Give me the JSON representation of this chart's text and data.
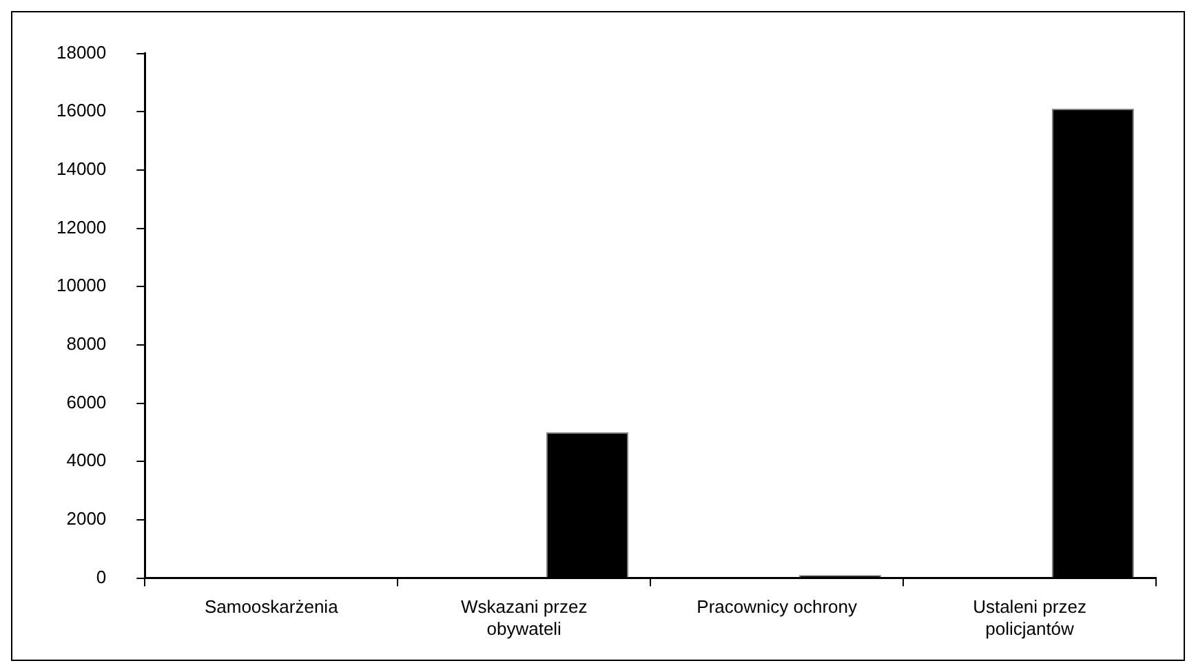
{
  "chart_data": {
    "type": "bar",
    "categories": [
      "Samooskarżenia",
      "Wskazani przez obywateli",
      "Pracownicy ochrony",
      "Ustaleni przez policjantów"
    ],
    "series": [
      {
        "color": "#000000",
        "values": [
          0,
          5000,
          100,
          16100
        ]
      }
    ],
    "ylim": [
      0,
      18000
    ],
    "yticks": [
      0,
      2000,
      4000,
      6000,
      8000,
      10000,
      12000,
      14000,
      16000,
      18000
    ],
    "grid": false,
    "legend": false
  }
}
